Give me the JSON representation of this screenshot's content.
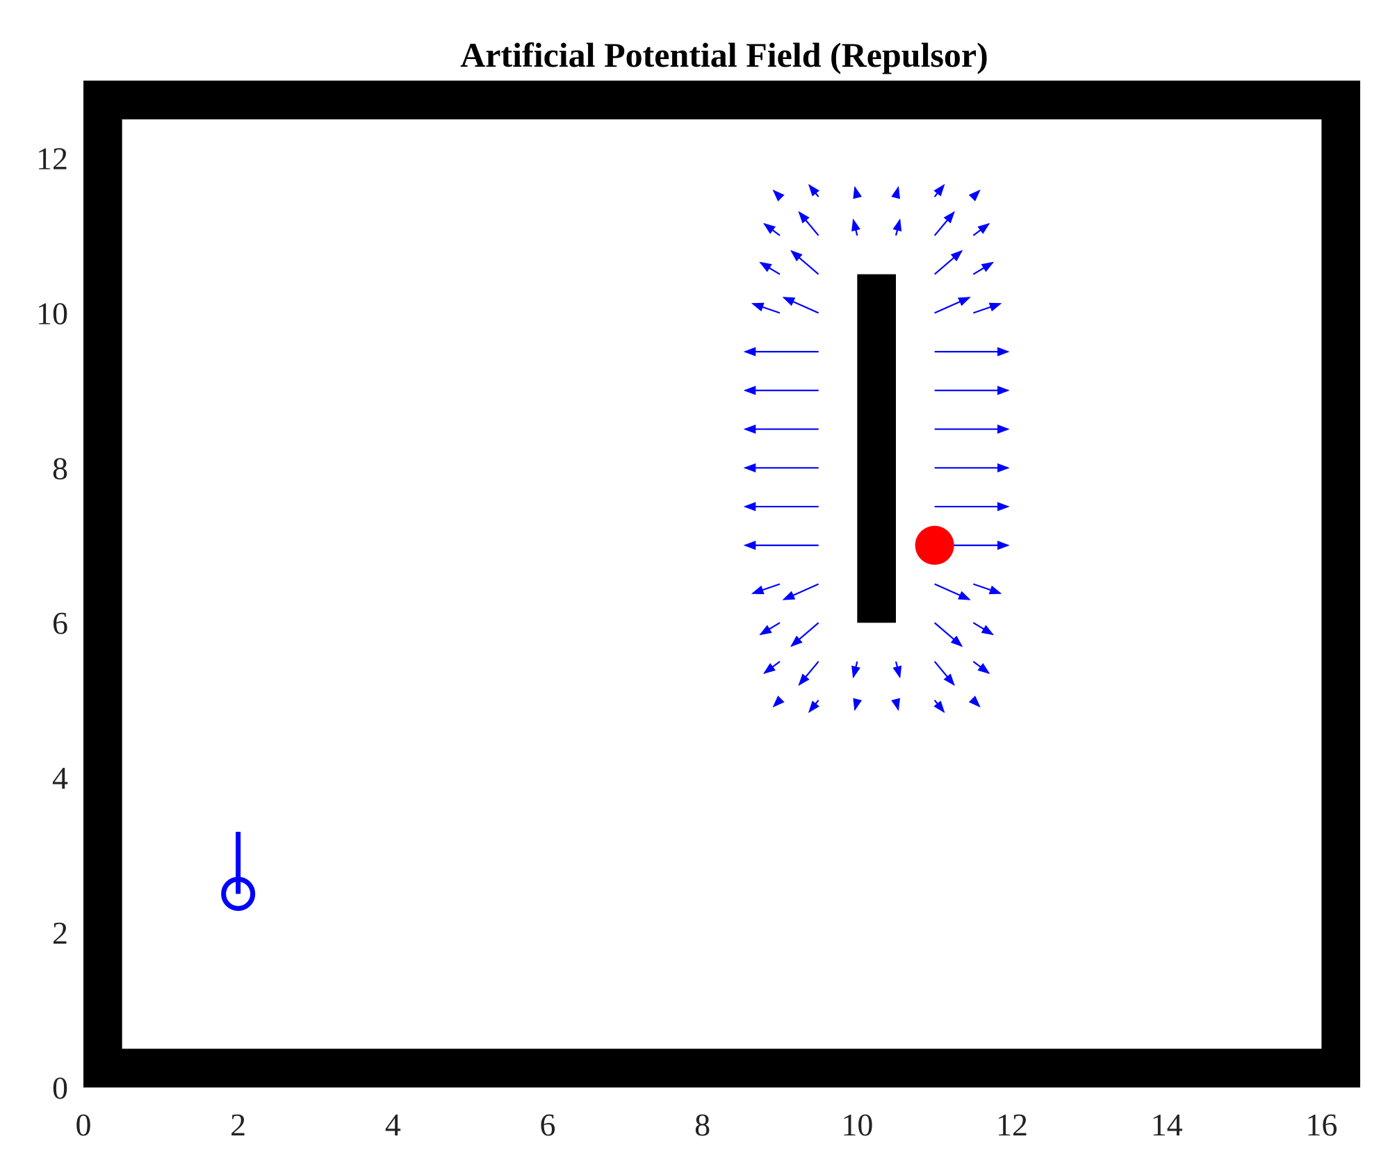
{
  "chart_data": {
    "type": "quiver",
    "title": "Artificial Potential Field (Repulsor)",
    "xlabel": "",
    "ylabel": "",
    "xlim": [
      0,
      16.5
    ],
    "ylim": [
      0,
      13
    ],
    "x_ticks": [
      "0",
      "2",
      "4",
      "6",
      "8",
      "10",
      "12",
      "14",
      "16"
    ],
    "y_ticks": [
      "0",
      "2",
      "4",
      "6",
      "8",
      "10",
      "12"
    ],
    "grid": false,
    "colors": {
      "walls": "#000000",
      "obstacle": "#000000",
      "arrows": "#0000ff",
      "robot": "#0000ff",
      "goal": "#ff0000"
    },
    "walls": [
      {
        "x": 0,
        "y": 0,
        "w": 16.5,
        "h": 0.5
      },
      {
        "x": 0,
        "y": 12.5,
        "w": 16.5,
        "h": 0.5
      },
      {
        "x": 0,
        "y": 0,
        "w": 0.5,
        "h": 13
      },
      {
        "x": 16,
        "y": 0,
        "w": 0.5,
        "h": 13
      }
    ],
    "obstacle": {
      "x": 10,
      "y": 6,
      "w": 0.5,
      "h": 4.5
    },
    "robot": {
      "x": 2,
      "y": 2.5,
      "heading_end": [
        2,
        3.3
      ]
    },
    "goal": {
      "x": 11,
      "y": 7
    },
    "vectors": [
      {
        "x": 9.5,
        "y": 9.5,
        "u": -0.95,
        "v": 0
      },
      {
        "x": 9.5,
        "y": 9,
        "u": -0.95,
        "v": 0
      },
      {
        "x": 9.5,
        "y": 8.5,
        "u": -0.95,
        "v": 0
      },
      {
        "x": 9.5,
        "y": 8,
        "u": -0.95,
        "v": 0
      },
      {
        "x": 9.5,
        "y": 7.5,
        "u": -0.95,
        "v": 0
      },
      {
        "x": 9.5,
        "y": 7,
        "u": -0.95,
        "v": 0
      },
      {
        "x": 11,
        "y": 9.5,
        "u": 0.95,
        "v": 0
      },
      {
        "x": 11,
        "y": 9,
        "u": 0.95,
        "v": 0
      },
      {
        "x": 11,
        "y": 8.5,
        "u": 0.95,
        "v": 0
      },
      {
        "x": 11,
        "y": 8,
        "u": 0.95,
        "v": 0
      },
      {
        "x": 11,
        "y": 7.5,
        "u": 0.95,
        "v": 0
      },
      {
        "x": 11,
        "y": 7,
        "u": 0.95,
        "v": 0
      },
      {
        "x": 9.5,
        "y": 10,
        "u": -0.45,
        "v": 0.2
      },
      {
        "x": 9.5,
        "y": 10.5,
        "u": -0.35,
        "v": 0.3
      },
      {
        "x": 9.5,
        "y": 11,
        "u": -0.25,
        "v": 0.3
      },
      {
        "x": 9.5,
        "y": 11.5,
        "u": -0.12,
        "v": 0.15
      },
      {
        "x": 9,
        "y": 10,
        "u": -0.35,
        "v": 0.12
      },
      {
        "x": 9,
        "y": 10.5,
        "u": -0.25,
        "v": 0.15
      },
      {
        "x": 9,
        "y": 11,
        "u": -0.2,
        "v": 0.15
      },
      {
        "x": 9,
        "y": 11.5,
        "u": -0.08,
        "v": 0.08
      },
      {
        "x": 10,
        "y": 11,
        "u": -0.05,
        "v": 0.2
      },
      {
        "x": 10,
        "y": 11.5,
        "u": -0.03,
        "v": 0.12
      },
      {
        "x": 10.5,
        "y": 11,
        "u": 0.05,
        "v": 0.2
      },
      {
        "x": 10.5,
        "y": 11.5,
        "u": 0.03,
        "v": 0.12
      },
      {
        "x": 11,
        "y": 10,
        "u": 0.45,
        "v": 0.2
      },
      {
        "x": 11,
        "y": 10.5,
        "u": 0.35,
        "v": 0.3
      },
      {
        "x": 11,
        "y": 11,
        "u": 0.25,
        "v": 0.3
      },
      {
        "x": 11,
        "y": 11.5,
        "u": 0.12,
        "v": 0.15
      },
      {
        "x": 11.5,
        "y": 10,
        "u": 0.35,
        "v": 0.12
      },
      {
        "x": 11.5,
        "y": 10.5,
        "u": 0.25,
        "v": 0.15
      },
      {
        "x": 11.5,
        "y": 11,
        "u": 0.2,
        "v": 0.15
      },
      {
        "x": 11.5,
        "y": 11.5,
        "u": 0.08,
        "v": 0.08
      },
      {
        "x": 9.5,
        "y": 6.5,
        "u": -0.45,
        "v": -0.2
      },
      {
        "x": 9.5,
        "y": 6,
        "u": -0.35,
        "v": -0.3
      },
      {
        "x": 9.5,
        "y": 5.5,
        "u": -0.25,
        "v": -0.3
      },
      {
        "x": 9.5,
        "y": 5,
        "u": -0.12,
        "v": -0.15
      },
      {
        "x": 9,
        "y": 6.5,
        "u": -0.35,
        "v": -0.12
      },
      {
        "x": 9,
        "y": 6,
        "u": -0.25,
        "v": -0.15
      },
      {
        "x": 9,
        "y": 5.5,
        "u": -0.2,
        "v": -0.15
      },
      {
        "x": 9,
        "y": 5,
        "u": -0.08,
        "v": -0.08
      },
      {
        "x": 10,
        "y": 5.5,
        "u": -0.05,
        "v": -0.2
      },
      {
        "x": 10,
        "y": 5,
        "u": -0.03,
        "v": -0.12
      },
      {
        "x": 10.5,
        "y": 5.5,
        "u": 0.05,
        "v": -0.2
      },
      {
        "x": 10.5,
        "y": 5,
        "u": 0.03,
        "v": -0.12
      },
      {
        "x": 11,
        "y": 6.5,
        "u": 0.45,
        "v": -0.2
      },
      {
        "x": 11,
        "y": 6,
        "u": 0.35,
        "v": -0.3
      },
      {
        "x": 11,
        "y": 5.5,
        "u": 0.25,
        "v": -0.3
      },
      {
        "x": 11,
        "y": 5,
        "u": 0.12,
        "v": -0.15
      },
      {
        "x": 11.5,
        "y": 6.5,
        "u": 0.35,
        "v": -0.12
      },
      {
        "x": 11.5,
        "y": 6,
        "u": 0.25,
        "v": -0.15
      },
      {
        "x": 11.5,
        "y": 5.5,
        "u": 0.2,
        "v": -0.15
      },
      {
        "x": 11.5,
        "y": 5,
        "u": 0.08,
        "v": -0.08
      }
    ]
  }
}
